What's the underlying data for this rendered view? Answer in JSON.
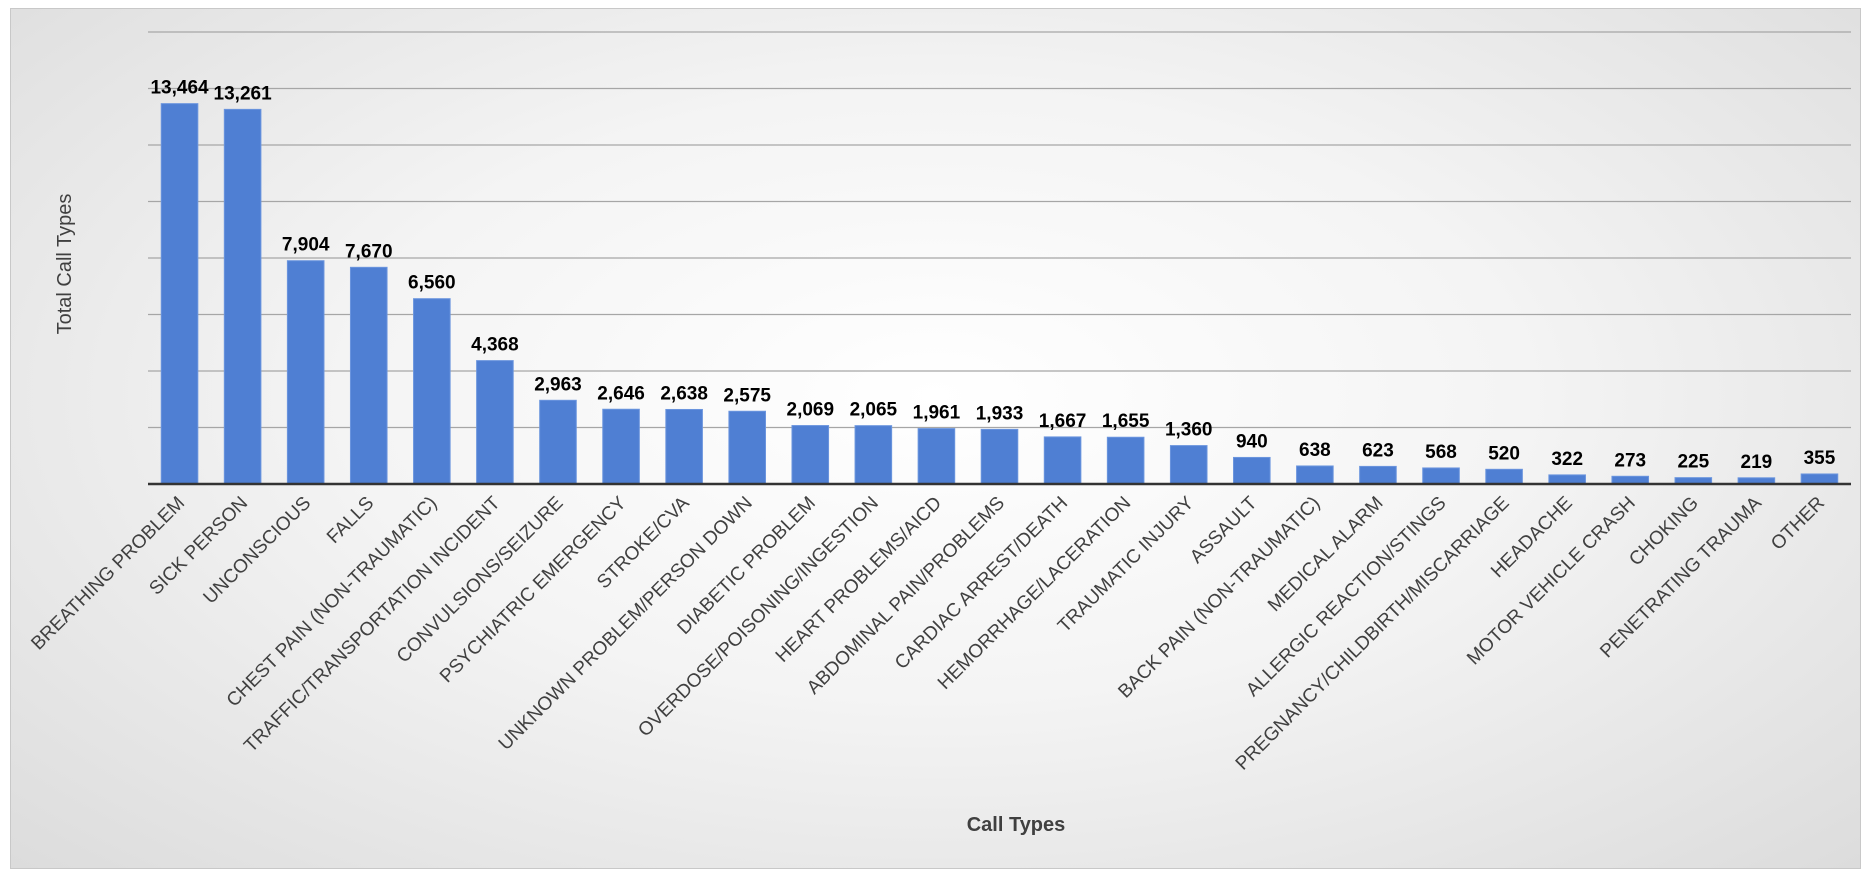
{
  "chart_data": {
    "type": "bar",
    "xlabel": "Call Types",
    "ylabel": "Total Call Types",
    "ylim": [
      0,
      16000
    ],
    "y_grid_step": 2000,
    "grid": true,
    "legend": "none",
    "colors": {
      "bar": "#4f7fd3",
      "bar_edge": "#6b95de",
      "gridline": "#a6a6a6",
      "axis": "#333333"
    },
    "categories": [
      "BREATHING PROBLEM",
      "SICK PERSON",
      "UNCONSCIOUS",
      "FALLS",
      "CHEST PAIN (NON-TRAUMATIC)",
      "TRAFFIC/TRANSPORTATION INCIDENT",
      "CONVULSIONS/SEIZURE",
      "PSYCHIATRIC EMERGENCY",
      "STROKE/CVA",
      "UNKNOWN PROBLEM/PERSON DOWN",
      "DIABETIC PROBLEM",
      "OVERDOSE/POISONING/INGESTION",
      "HEART PROBLEMS/AICD",
      "ABDOMINAL PAIN/PROBLEMS",
      "CARDIAC ARREST/DEATH",
      "HEMORRHAGE/LACERATION",
      "TRAUMATIC INJURY",
      "ASSAULT",
      "BACK PAIN (NON-TRAUMATIC)",
      "MEDICAL ALARM",
      "ALLERGIC REACTION/STINGS",
      "PREGNANCY/CHILDBIRTH/MISCARRIAGE",
      "HEADACHE",
      "MOTOR VEHICLE CRASH",
      "CHOKING",
      "PENETRATING TRAUMA",
      "OTHER"
    ],
    "values": [
      13464,
      13261,
      7904,
      7670,
      6560,
      4368,
      2963,
      2646,
      2638,
      2575,
      2069,
      2065,
      1961,
      1933,
      1667,
      1655,
      1360,
      940,
      638,
      623,
      568,
      520,
      322,
      273,
      225,
      219,
      355
    ],
    "data_labels": [
      "13,464",
      "13,261",
      "7,904",
      "7,670",
      "6,560",
      "4,368",
      "2,963",
      "2,646",
      "2,638",
      "2,575",
      "2,069",
      "2,065",
      "1,961",
      "1,933",
      "1,667",
      "1,655",
      "1,360",
      "940",
      "638",
      "623",
      "568",
      "520",
      "322",
      "273",
      "225",
      "219",
      "355"
    ]
  }
}
